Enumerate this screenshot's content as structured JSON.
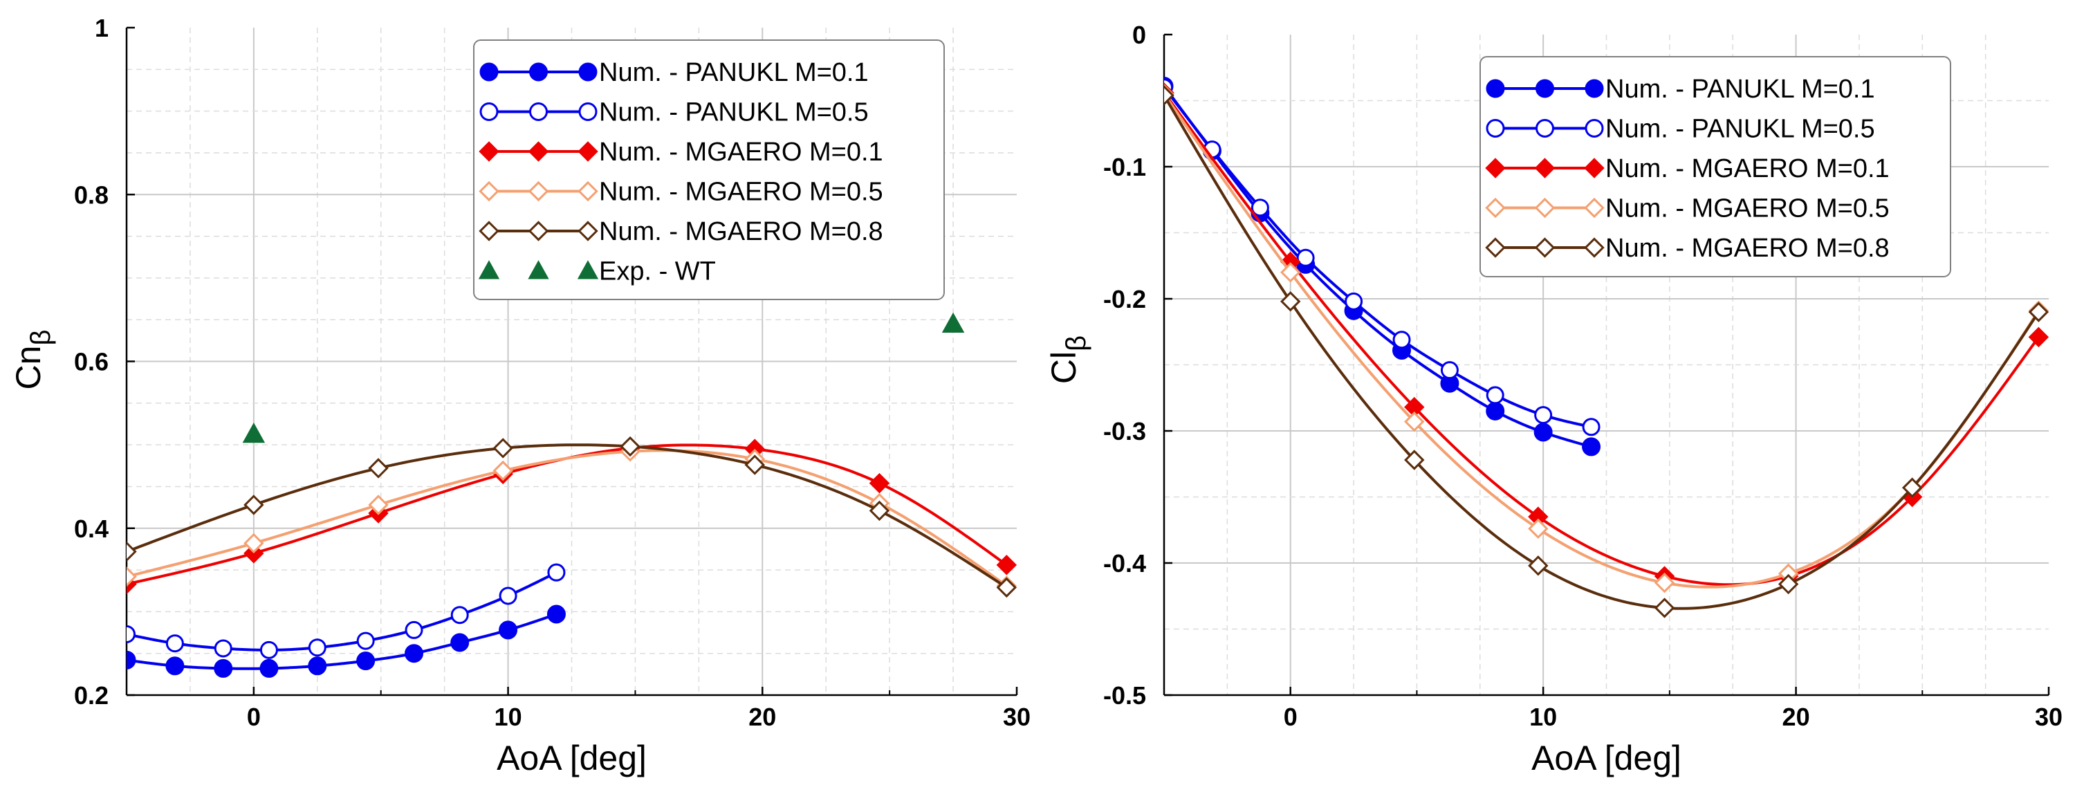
{
  "chart_data": [
    {
      "type": "line",
      "id": "left",
      "xlabel": "AoA [deg]",
      "ylabel": "Cnβ",
      "xlim": [
        -5,
        30
      ],
      "ylim": [
        0.2,
        1.0
      ],
      "xticks": [
        "0",
        "10",
        "20",
        "30"
      ],
      "xtick_values": [
        0,
        10,
        20,
        30
      ],
      "yticks": [
        "0.2",
        "0.4",
        "0.6",
        "0.8",
        "1"
      ],
      "ytick_values": [
        0.2,
        0.4,
        0.6,
        0.8,
        1.0
      ],
      "grid": true,
      "legend_position": "top-right",
      "series": [
        {
          "name": "Num. - PANUKL M=0.1",
          "color": "#0000ee",
          "marker": "circle-filled",
          "line": true,
          "x": [
            -5,
            -3.1,
            -1.2,
            0.6,
            2.5,
            4.4,
            6.3,
            8.1,
            10.0,
            11.9
          ],
          "y": [
            0.242,
            0.235,
            0.232,
            0.232,
            0.235,
            0.241,
            0.25,
            0.263,
            0.278,
            0.297
          ]
        },
        {
          "name": "Num. - PANUKL M=0.5",
          "color": "#0000ee",
          "marker": "circle-open",
          "line": true,
          "x": [
            -5,
            -3.1,
            -1.2,
            0.6,
            2.5,
            4.4,
            6.3,
            8.1,
            10.0,
            11.9
          ],
          "y": [
            0.273,
            0.262,
            0.256,
            0.254,
            0.257,
            0.265,
            0.278,
            0.296,
            0.319,
            0.347
          ]
        },
        {
          "name": "Num. - MGAERO M=0.1",
          "color": "#ee0000",
          "marker": "diamond-filled",
          "line": true,
          "x": [
            -5,
            0,
            4.9,
            9.8,
            14.8,
            19.7,
            24.6,
            29.6
          ],
          "y": [
            0.333,
            0.37,
            0.418,
            0.465,
            0.496,
            0.495,
            0.454,
            0.356
          ]
        },
        {
          "name": "Num. - MGAERO M=0.5",
          "color": "#f4a070",
          "marker": "diamond-open",
          "line": true,
          "x": [
            -5,
            0,
            4.9,
            9.8,
            14.8,
            19.7,
            24.6,
            29.6
          ],
          "y": [
            0.342,
            0.382,
            0.428,
            0.469,
            0.492,
            0.483,
            0.43,
            0.331
          ]
        },
        {
          "name": "Num. - MGAERO M=0.8",
          "color": "#5a2d0c",
          "marker": "diamond-open",
          "line": true,
          "x": [
            -5,
            0,
            4.9,
            9.8,
            14.8,
            19.7,
            24.6,
            29.6
          ],
          "y": [
            0.372,
            0.428,
            0.472,
            0.496,
            0.498,
            0.476,
            0.421,
            0.329
          ]
        },
        {
          "name": "Exp. - WT",
          "color": "#0e6e35",
          "marker": "triangle-filled",
          "line": false,
          "x": [
            0,
            27.5
          ],
          "y": [
            0.513,
            0.645
          ]
        }
      ]
    },
    {
      "type": "line",
      "id": "right",
      "xlabel": "AoA [deg]",
      "ylabel": "Clβ",
      "xlim": [
        -5,
        30
      ],
      "ylim": [
        -0.5,
        0
      ],
      "xticks": [
        "0",
        "10",
        "20",
        "30"
      ],
      "xtick_values": [
        0,
        10,
        20,
        30
      ],
      "yticks": [
        "-0.5",
        "-0.4",
        "-0.3",
        "-0.2",
        "-0.1",
        "0"
      ],
      "ytick_values": [
        -0.5,
        -0.4,
        -0.3,
        -0.2,
        -0.1,
        0
      ],
      "grid": true,
      "legend_position": "top-right",
      "series": [
        {
          "name": "Num. - PANUKL M=0.1",
          "color": "#0000ee",
          "marker": "circle-filled",
          "line": true,
          "x": [
            -5,
            -3.1,
            -1.2,
            0.6,
            2.5,
            4.4,
            6.3,
            8.1,
            10.0,
            11.9
          ],
          "y": [
            -0.039,
            -0.088,
            -0.135,
            -0.174,
            -0.209,
            -0.239,
            -0.264,
            -0.285,
            -0.301,
            -0.312
          ]
        },
        {
          "name": "Num. - PANUKL M=0.5",
          "color": "#0000ee",
          "marker": "circle-open",
          "line": true,
          "x": [
            -5,
            -3.1,
            -1.2,
            0.6,
            2.5,
            4.4,
            6.3,
            8.1,
            10.0,
            11.9
          ],
          "y": [
            -0.04,
            -0.087,
            -0.131,
            -0.169,
            -0.202,
            -0.231,
            -0.254,
            -0.273,
            -0.288,
            -0.297
          ]
        },
        {
          "name": "Num. - MGAERO M=0.1",
          "color": "#ee0000",
          "marker": "diamond-filled",
          "line": true,
          "x": [
            -5,
            0,
            4.9,
            9.8,
            14.8,
            19.7,
            24.6,
            29.6
          ],
          "y": [
            -0.044,
            -0.172,
            -0.282,
            -0.365,
            -0.41,
            -0.41,
            -0.35,
            -0.229
          ]
        },
        {
          "name": "Num. - MGAERO M=0.5",
          "color": "#f4a070",
          "marker": "diamond-open",
          "line": true,
          "x": [
            -5,
            0,
            4.9,
            9.8,
            14.8,
            19.7,
            24.6,
            29.6
          ],
          "y": [
            -0.045,
            -0.18,
            -0.293,
            -0.374,
            -0.415,
            -0.408,
            -0.343,
            -0.209
          ]
        },
        {
          "name": "Num. - MGAERO M=0.8",
          "color": "#5a2d0c",
          "marker": "diamond-open",
          "line": true,
          "x": [
            -5,
            0,
            4.9,
            9.8,
            14.8,
            19.7,
            24.6,
            29.6
          ],
          "y": [
            -0.046,
            -0.202,
            -0.322,
            -0.402,
            -0.434,
            -0.416,
            -0.343,
            -0.21
          ]
        }
      ]
    }
  ]
}
